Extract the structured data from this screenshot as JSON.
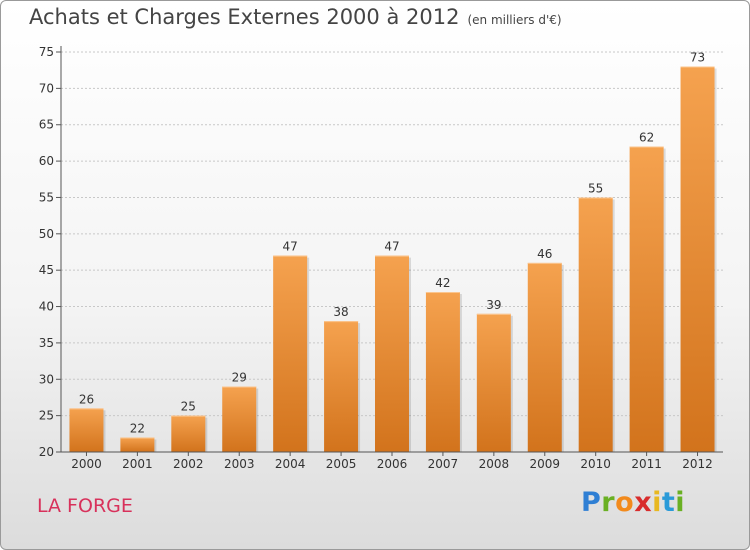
{
  "title": "Achats et Charges Externes 2000 à 2012",
  "subtitle": "(en milliers d'€)",
  "place": "LA FORGE",
  "brand": {
    "letters": [
      "P",
      "r",
      "o",
      "x",
      "i",
      "t",
      "i"
    ],
    "colors": [
      "#2f7fd4",
      "#6ab023",
      "#f28a1c",
      "#d82c2c",
      "#e8b820",
      "#2a9ad8",
      "#6ab023"
    ]
  },
  "colors": {
    "bar_top": "#f5a24f",
    "bar_bottom": "#d2731c",
    "grid": "#c8c8c8",
    "axis": "#555555"
  },
  "chart_data": {
    "type": "bar",
    "categories": [
      "2000",
      "2001",
      "2002",
      "2003",
      "2004",
      "2005",
      "2006",
      "2007",
      "2008",
      "2009",
      "2010",
      "2011",
      "2012"
    ],
    "values": [
      26,
      22,
      25,
      29,
      47,
      38,
      47,
      42,
      39,
      46,
      55,
      62,
      73
    ],
    "ylim": [
      20,
      75
    ],
    "yticks": [
      20,
      25,
      30,
      35,
      40,
      45,
      50,
      55,
      60,
      65,
      70,
      75
    ],
    "grid": true,
    "data_labels": true
  }
}
